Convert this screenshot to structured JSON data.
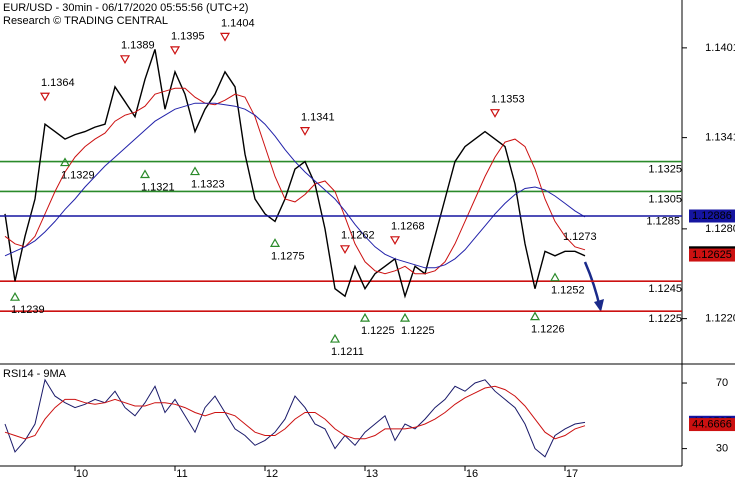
{
  "chart_data": [
    {
      "type": "line",
      "title": "EUR/USD - 30min - 06/17/2020 05:55:56 (UTC+2)",
      "subtitle": "Research © TRADING CENTRAL",
      "ylim": [
        1.1191,
        1.1433
      ],
      "yticks": [
        1.1401,
        1.1341,
        {
          "value": 1.128,
          "label": "1.1280"
        },
        {
          "value": 1.122,
          "label": "1.1220"
        }
      ],
      "series": [
        {
          "color": "#000000",
          "values": [
            1.129,
            1.1245,
            1.1275,
            1.13,
            1.135,
            1.1345,
            1.134,
            1.1343,
            1.1345,
            1.1348,
            1.135,
            1.1375,
            1.1365,
            1.1355,
            1.138,
            1.14,
            1.136,
            1.1385,
            1.137,
            1.1345,
            1.136,
            1.137,
            1.1385,
            1.1375,
            1.133,
            1.13,
            1.129,
            1.1285,
            1.13,
            1.132,
            1.1325,
            1.131,
            1.128,
            1.124,
            1.1235,
            1.1255,
            1.124,
            1.125,
            1.1255,
            1.126,
            1.1235,
            1.1255,
            1.125,
            1.1275,
            1.13,
            1.1325,
            1.1335,
            1.134,
            1.1345,
            1.134,
            1.1335,
            1.131,
            1.127,
            1.124,
            1.1265,
            1.1262,
            1.1265,
            1.1265,
            1.1262,
            null,
            null,
            null,
            null,
            null,
            null,
            null,
            null,
            null
          ]
        },
        {
          "color": "#cc1111",
          "values": [
            1.1275,
            1.127,
            1.1268,
            1.1275,
            1.129,
            1.1305,
            1.1318,
            1.1328,
            1.1335,
            1.134,
            1.1344,
            1.1352,
            1.1356,
            1.1358,
            1.1362,
            1.137,
            1.1372,
            1.1374,
            1.1374,
            1.1368,
            1.1364,
            1.1363,
            1.1366,
            1.137,
            1.1368,
            1.1355,
            1.1335,
            1.1315,
            1.13,
            1.1298,
            1.1303,
            1.131,
            1.1312,
            1.1305,
            1.1288,
            1.127,
            1.1258,
            1.1252,
            1.125,
            1.1252,
            1.1255,
            1.125,
            1.125,
            1.1252,
            1.1258,
            1.127,
            1.1285,
            1.13,
            1.1315,
            1.1328,
            1.1338,
            1.134,
            1.1335,
            1.132,
            1.13,
            1.1285,
            1.1275,
            1.1268,
            1.1266,
            null,
            null,
            null,
            null,
            null,
            null,
            null,
            null,
            null
          ]
        },
        {
          "color": "#2222aa",
          "values": [
            1.1262,
            1.1265,
            1.1268,
            1.1272,
            1.1278,
            1.1285,
            1.1293,
            1.13,
            1.1308,
            1.1315,
            1.1322,
            1.1328,
            1.1334,
            1.134,
            1.1346,
            1.1352,
            1.1356,
            1.136,
            1.1362,
            1.1364,
            1.1364,
            1.1364,
            1.1363,
            1.1362,
            1.136,
            1.1356,
            1.135,
            1.1342,
            1.1333,
            1.1325,
            1.1318,
            1.1312,
            1.1306,
            1.13,
            1.1292,
            1.1283,
            1.1275,
            1.1268,
            1.1263,
            1.126,
            1.1258,
            1.1256,
            1.1254,
            1.1254,
            1.1256,
            1.126,
            1.1266,
            1.1274,
            1.1282,
            1.129,
            1.1297,
            1.1303,
            1.1307,
            1.1308,
            1.1306,
            1.1302,
            1.1297,
            1.1292,
            1.1288,
            null,
            null,
            null,
            null,
            null,
            null,
            null,
            null,
            null
          ]
        }
      ],
      "levels": [
        {
          "value": 1.1325,
          "color": "#2a8a2a"
        },
        {
          "value": 1.1305,
          "color": "#2a8a2a"
        },
        {
          "value": 1.1245,
          "color": "#cc1111"
        },
        {
          "value": 1.1225,
          "color": "#cc1111"
        }
      ],
      "markers": [
        {
          "value": 1.12886,
          "color": "#1515a0",
          "line": true
        },
        {
          "value": 1.1264,
          "color": "#000000"
        },
        {
          "value": 1.12625,
          "color": "#cc1111"
        }
      ],
      "notes": [
        {
          "value": 1.1285,
          "color": "#555555"
        }
      ],
      "annotations": [
        {
          "value": 1.1364,
          "index": 4,
          "kind": "high"
        },
        {
          "value": 1.1239,
          "index": 1,
          "kind": "low"
        },
        {
          "value": 1.1329,
          "index": 6,
          "kind": "low"
        },
        {
          "value": 1.1389,
          "index": 12,
          "kind": "high"
        },
        {
          "value": 1.1321,
          "index": 14,
          "kind": "low"
        },
        {
          "value": 1.1395,
          "index": 17,
          "kind": "high"
        },
        {
          "value": 1.1323,
          "index": 19,
          "kind": "low"
        },
        {
          "value": 1.1404,
          "index": 22,
          "kind": "high"
        },
        {
          "value": 1.1275,
          "index": 27,
          "kind": "low"
        },
        {
          "value": 1.1341,
          "index": 30,
          "kind": "high"
        },
        {
          "value": 1.1211,
          "index": 33,
          "kind": "low"
        },
        {
          "value": 1.1262,
          "index": 34,
          "kind": "high"
        },
        {
          "value": 1.1225,
          "index": 36,
          "kind": "low"
        },
        {
          "value": 1.1268,
          "index": 39,
          "kind": "high"
        },
        {
          "value": 1.1225,
          "index": 40,
          "kind": "low"
        },
        {
          "value": 1.1353,
          "index": 49,
          "kind": "high"
        },
        {
          "value": 1.1226,
          "index": 53,
          "kind": "low"
        },
        {
          "value": 1.1252,
          "index": 55,
          "kind": "low"
        },
        {
          "value": 1.1273,
          "index": 57,
          "kind": "note"
        }
      ]
    },
    {
      "type": "line",
      "title": "RSI14 - 9MA",
      "categories": [
        null,
        null,
        null,
        null,
        null,
        null,
        null,
        "10",
        null,
        null,
        null,
        null,
        null,
        null,
        null,
        null,
        null,
        "11",
        null,
        null,
        null,
        null,
        null,
        null,
        null,
        null,
        "12",
        null,
        null,
        null,
        null,
        null,
        null,
        null,
        null,
        null,
        "13",
        null,
        null,
        null,
        null,
        null,
        null,
        null,
        null,
        null,
        "16",
        null,
        null,
        null,
        null,
        null,
        null,
        null,
        null,
        null,
        "17",
        null,
        null,
        null,
        null,
        null,
        null,
        null,
        null,
        null,
        null,
        null
      ],
      "ylim": [
        20,
        81
      ],
      "yticks": [
        70,
        30
      ],
      "series": [
        {
          "color": "#1a1a6a",
          "values": [
            45,
            28,
            35,
            45,
            72,
            62,
            58,
            55,
            57,
            60,
            58,
            65,
            55,
            50,
            58,
            68,
            52,
            60,
            50,
            40,
            55,
            62,
            52,
            42,
            38,
            32,
            35,
            40,
            48,
            62,
            55,
            45,
            42,
            30,
            38,
            32,
            40,
            45,
            50,
            35,
            45,
            42,
            48,
            55,
            60,
            68,
            65,
            70,
            72,
            65,
            60,
            55,
            45,
            30,
            25,
            38,
            42,
            45,
            46,
            null,
            null,
            null,
            null,
            null,
            null,
            null,
            null,
            null
          ]
        },
        {
          "color": "#cc1111",
          "values": [
            40,
            38,
            36,
            38,
            48,
            55,
            60,
            60,
            58,
            57,
            58,
            60,
            58,
            56,
            56,
            58,
            58,
            57,
            55,
            52,
            50,
            52,
            52,
            50,
            45,
            40,
            38,
            38,
            42,
            48,
            52,
            52,
            48,
            42,
            38,
            36,
            36,
            38,
            42,
            42,
            42,
            43,
            45,
            48,
            52,
            57,
            61,
            64,
            67,
            68,
            66,
            62,
            56,
            48,
            40,
            36,
            38,
            42,
            44,
            null,
            null,
            null,
            null,
            null,
            null,
            null,
            null,
            null
          ]
        }
      ],
      "markers": [
        {
          "value": 46.0537,
          "color": "#1515a0"
        },
        {
          "value": 44.6666,
          "color": "#cc1111"
        }
      ]
    }
  ]
}
